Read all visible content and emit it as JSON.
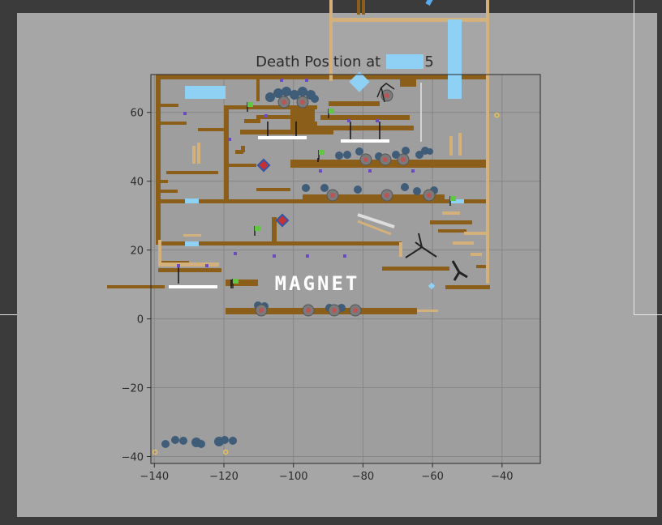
{
  "chart_data": {
    "type": "scatter",
    "title": "Death Position at level 5",
    "xlabel": "",
    "ylabel": "",
    "xlim": [
      -141,
      -29
    ],
    "ylim": [
      -42,
      71
    ],
    "x_ticks": [
      -140,
      -120,
      -100,
      -80,
      -60,
      -40
    ],
    "y_ticks": [
      60,
      40,
      20,
      0,
      -20,
      -40
    ],
    "grid": true,
    "background": "level map screenshot",
    "overlay_text": "MAGNET",
    "series": [
      {
        "marker": "o",
        "color": "#e8c15a",
        "points": [
          {
            "x": -139.8,
            "y": -38.7
          },
          {
            "x": -119.5,
            "y": -38.7
          },
          {
            "x": -41.5,
            "y": 59.2
          }
        ]
      }
    ]
  },
  "colors": {
    "frame_bg": "#3b3b3b",
    "canvas_bg": "#a6a6a6",
    "axes_bg": "#9e9e9e",
    "grid": "#868686",
    "platform": "#8b5e1a",
    "light_wood": "#d4b17a",
    "water": "#8fd0f5",
    "saw": "#bb5555",
    "blob": "#3f5c79",
    "flag": "#5fc742",
    "magnet": "#ffffff"
  }
}
